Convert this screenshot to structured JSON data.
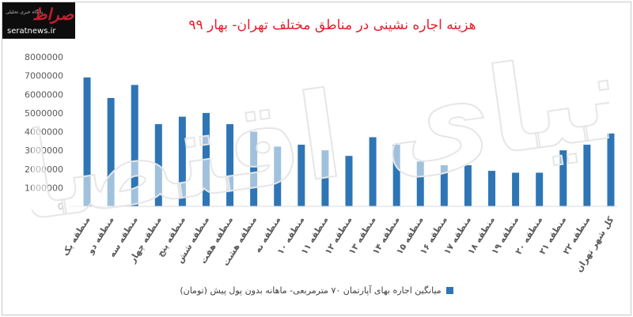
{
  "logo": {
    "mark": "صراط",
    "subtitle": "پایگاه خبری تحلیلی",
    "url": "seratnews.ir"
  },
  "watermark_text": "دنیای اقتصاد",
  "chart_data": {
    "type": "bar",
    "title": "هزینه اجاره نشینی در مناطق مختلف تهران- بهار ۹۹",
    "xlabel": "",
    "ylabel": "",
    "ylim": [
      0,
      8000000
    ],
    "yticks": [
      0,
      1000000,
      2000000,
      3000000,
      4000000,
      5000000,
      6000000,
      7000000,
      8000000
    ],
    "ytick_labels": [
      "0",
      "1000000",
      "2000000",
      "3000000",
      "4000000",
      "5000000",
      "6000000",
      "7000000",
      "8000000"
    ],
    "grid": false,
    "legend_position": "bottom",
    "color": "#2e75b6",
    "categories": [
      "منطقه یک",
      "منطقه دو",
      "منطقه سه",
      "منطقه چهار",
      "منطقه پنج",
      "منطقه شش",
      "منطقه هفت",
      "منطقه هشت",
      "منطقه نه",
      "منطقه ۱۰",
      "منطقه ۱۱",
      "منطقه ۱۲",
      "منطقه ۱۳",
      "منطقه ۱۴",
      "منطقه ۱۵",
      "منطقه ۱۶",
      "منطقه ۱۷",
      "منطقه ۱۸",
      "منطقه ۱۹",
      "منطقه ۲۰",
      "منطقه ۲۱",
      "منطقه ۲۲",
      "کل شهر تهران"
    ],
    "series": [
      {
        "name": "میانگین اجاره بهای آپارتمان ۷۰ مترمربعی- ماهانه بدون پول پیش (تومان)",
        "values": [
          6900000,
          5800000,
          6500000,
          4400000,
          4800000,
          5000000,
          4400000,
          4000000,
          3200000,
          3300000,
          3000000,
          2700000,
          3700000,
          3300000,
          2400000,
          2200000,
          2200000,
          1900000,
          1800000,
          1800000,
          3000000,
          3300000,
          3900000
        ]
      }
    ]
  }
}
